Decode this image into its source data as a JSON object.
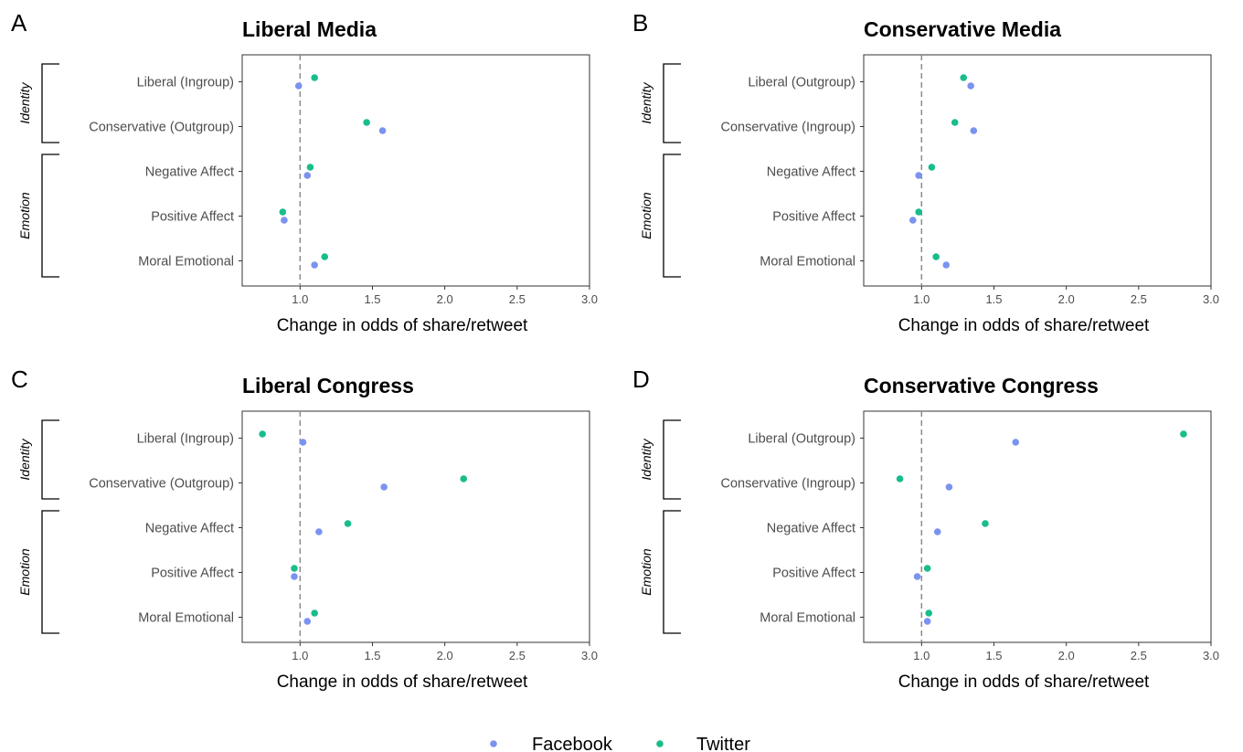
{
  "colors": {
    "Facebook": "#7b93f0",
    "Twitter": "#18bd8c",
    "refline": "#8c8c8c",
    "frame": "#333333"
  },
  "legend": {
    "entries": [
      "Facebook",
      "Twitter"
    ]
  },
  "chart_data": [
    {
      "type": "scatter",
      "panel_letter": "A",
      "title": "Liberal Media",
      "xlabel": "Change in odds of share/retweet",
      "xlim": [
        0.6,
        3.0
      ],
      "xticks": [
        "1.0",
        "1.5",
        "2.0",
        "2.5",
        "3.0"
      ],
      "reference_line": 1.0,
      "categories": [
        "Liberal (Ingroup)",
        "Conservative (Outgroup)",
        "Negative Affect",
        "Positive Affect",
        "Moral Emotional"
      ],
      "groups": [
        {
          "label": "Identity",
          "categories": [
            0,
            1
          ]
        },
        {
          "label": "Emotion",
          "categories": [
            2,
            3,
            4
          ]
        }
      ],
      "series": [
        {
          "name": "Facebook",
          "values": [
            0.99,
            1.57,
            1.05,
            0.89,
            1.1
          ]
        },
        {
          "name": "Twitter",
          "values": [
            1.1,
            1.46,
            1.07,
            0.88,
            1.17
          ]
        }
      ]
    },
    {
      "type": "scatter",
      "panel_letter": "B",
      "title": "Conservative Media",
      "xlabel": "Change in odds of share/retweet",
      "xlim": [
        0.6,
        3.0
      ],
      "xticks": [
        "1.0",
        "1.5",
        "2.0",
        "2.5",
        "3.0"
      ],
      "reference_line": 1.0,
      "categories": [
        "Liberal (Outgroup)",
        "Conservative (Ingroup)",
        "Negative Affect",
        "Positive Affect",
        "Moral Emotional"
      ],
      "groups": [
        {
          "label": "Identity",
          "categories": [
            0,
            1
          ]
        },
        {
          "label": "Emotion",
          "categories": [
            2,
            3,
            4
          ]
        }
      ],
      "series": [
        {
          "name": "Facebook",
          "values": [
            1.34,
            1.36,
            0.98,
            0.94,
            1.17
          ]
        },
        {
          "name": "Twitter",
          "values": [
            1.29,
            1.23,
            1.07,
            0.98,
            1.1
          ]
        }
      ]
    },
    {
      "type": "scatter",
      "panel_letter": "C",
      "title": "Liberal Congress",
      "xlabel": "Change in odds of share/retweet",
      "xlim": [
        0.6,
        3.0
      ],
      "xticks": [
        "1.0",
        "1.5",
        "2.0",
        "2.5",
        "3.0"
      ],
      "reference_line": 1.0,
      "categories": [
        "Liberal (Ingroup)",
        "Conservative (Outgroup)",
        "Negative Affect",
        "Positive Affect",
        "Moral Emotional"
      ],
      "groups": [
        {
          "label": "Identity",
          "categories": [
            0,
            1
          ]
        },
        {
          "label": "Emotion",
          "categories": [
            2,
            3,
            4
          ]
        }
      ],
      "series": [
        {
          "name": "Facebook",
          "values": [
            1.02,
            1.58,
            1.13,
            0.96,
            1.05
          ]
        },
        {
          "name": "Twitter",
          "values": [
            0.74,
            2.13,
            1.33,
            0.96,
            1.1
          ]
        }
      ]
    },
    {
      "type": "scatter",
      "panel_letter": "D",
      "title": "Conservative Congress",
      "xlabel": "Change in odds of share/retweet",
      "xlim": [
        0.6,
        3.0
      ],
      "xticks": [
        "1.0",
        "1.5",
        "2.0",
        "2.5",
        "3.0"
      ],
      "reference_line": 1.0,
      "categories": [
        "Liberal (Outgroup)",
        "Conservative (Ingroup)",
        "Negative Affect",
        "Positive Affect",
        "Moral Emotional"
      ],
      "groups": [
        {
          "label": "Identity",
          "categories": [
            0,
            1
          ]
        },
        {
          "label": "Emotion",
          "categories": [
            2,
            3,
            4
          ]
        }
      ],
      "series": [
        {
          "name": "Facebook",
          "values": [
            1.65,
            1.19,
            1.11,
            0.97,
            1.04
          ]
        },
        {
          "name": "Twitter",
          "values": [
            2.81,
            0.85,
            1.44,
            1.04,
            1.05
          ]
        }
      ]
    }
  ]
}
